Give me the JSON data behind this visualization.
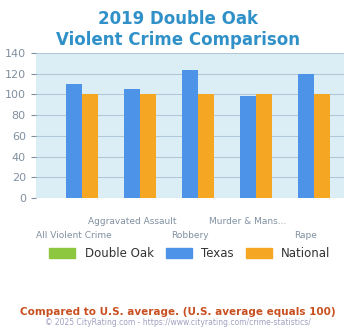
{
  "title_line1": "2019 Double Oak",
  "title_line2": "Violent Crime Comparison",
  "title_color": "#3090c8",
  "groups": 5,
  "group_labels_top": [
    "",
    "Aggravated Assault",
    "",
    "Murder & Mans...",
    ""
  ],
  "group_labels_bot": [
    "All Violent Crime",
    "",
    "Robbery",
    "",
    "Rape"
  ],
  "double_oak": [
    0,
    0,
    0,
    0,
    0
  ],
  "texas": [
    110,
    105,
    123,
    98,
    120
  ],
  "national": [
    100,
    100,
    100,
    100,
    100
  ],
  "double_oak_color": "#8dc63f",
  "texas_color": "#4d94e8",
  "national_color": "#f5a623",
  "bg_color": "#dceef5",
  "ylim": [
    0,
    140
  ],
  "yticks": [
    0,
    20,
    40,
    60,
    80,
    100,
    120,
    140
  ],
  "subtitle_text": "Compared to U.S. average. (U.S. average equals 100)",
  "subtitle_color": "#c85020",
  "footer_text": "© 2025 CityRating.com - https://www.cityrating.com/crime-statistics/",
  "footer_color": "#a0a0c0",
  "tick_color": "#8090a0",
  "grid_color": "#b0c8d8"
}
